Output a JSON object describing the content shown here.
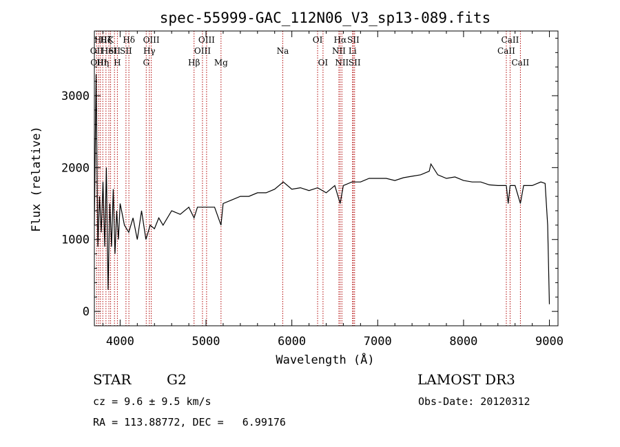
{
  "chart_data": {
    "type": "line",
    "title": "spec-55999-GAC_112N06_V3_sp13-089.fits",
    "xlabel": "Wavelength (Å)",
    "ylabel": "Flux (relative)",
    "xlim": [
      3700,
      9100
    ],
    "ylim": [
      -200,
      3900
    ],
    "xticks": [
      4000,
      5000,
      6000,
      7000,
      8000,
      9000
    ],
    "yticks": [
      0,
      1000,
      2000,
      3000
    ],
    "series": [
      {
        "name": "flux",
        "x": [
          3700,
          3720,
          3740,
          3760,
          3780,
          3800,
          3820,
          3840,
          3860,
          3880,
          3900,
          3920,
          3940,
          3960,
          3980,
          4000,
          4050,
          4100,
          4150,
          4200,
          4250,
          4300,
          4350,
          4400,
          4450,
          4500,
          4600,
          4700,
          4800,
          4861,
          4900,
          5000,
          5100,
          5175,
          5200,
          5300,
          5400,
          5500,
          5600,
          5700,
          5800,
          5900,
          6000,
          6100,
          6200,
          6300,
          6400,
          6500,
          6563,
          6600,
          6700,
          6800,
          6900,
          7000,
          7100,
          7200,
          7300,
          7400,
          7500,
          7600,
          7620,
          7700,
          7800,
          7900,
          8000,
          8100,
          8200,
          8300,
          8400,
          8498,
          8520,
          8542,
          8600,
          8662,
          8700,
          8800,
          8900,
          8950,
          8980,
          9000
        ],
        "y": [
          1200,
          3300,
          900,
          1600,
          1100,
          1800,
          900,
          2000,
          300,
          1500,
          900,
          1700,
          800,
          1400,
          1000,
          1500,
          1200,
          1100,
          1300,
          1000,
          1400,
          1000,
          1200,
          1150,
          1300,
          1200,
          1400,
          1350,
          1450,
          1300,
          1450,
          1450,
          1450,
          1200,
          1500,
          1550,
          1600,
          1600,
          1650,
          1650,
          1700,
          1800,
          1700,
          1720,
          1680,
          1720,
          1650,
          1750,
          1500,
          1750,
          1800,
          1800,
          1850,
          1850,
          1850,
          1820,
          1860,
          1880,
          1900,
          1950,
          2050,
          1900,
          1850,
          1870,
          1820,
          1800,
          1800,
          1760,
          1750,
          1750,
          1500,
          1750,
          1750,
          1500,
          1750,
          1750,
          1800,
          1780,
          1200,
          100
        ]
      }
    ],
    "line_markers": [
      {
        "wavelength": 3727,
        "label": "OII",
        "row": 2
      },
      {
        "wavelength": 3750,
        "label": "OIII",
        "row": 3
      },
      {
        "wavelength": 3770,
        "label": "Hθ",
        "row": 1
      },
      {
        "wavelength": 3798,
        "label": "Hη",
        "row": 3
      },
      {
        "wavelength": 3835,
        "label": "Hζ",
        "row": 1
      },
      {
        "wavelength": 3869,
        "label": "HeI",
        "row": 2
      },
      {
        "wavelength": 3889,
        "label": "K",
        "row": 1
      },
      {
        "wavelength": 3934,
        "label": "SII",
        "row": 2
      },
      {
        "wavelength": 3968,
        "label": "H",
        "row": 3
      },
      {
        "wavelength": 4068,
        "label": "SII",
        "row": 2
      },
      {
        "wavelength": 4102,
        "label": "Hδ",
        "row": 1
      },
      {
        "wavelength": 4304,
        "label": "G",
        "row": 3
      },
      {
        "wavelength": 4340,
        "label": "Hγ",
        "row": 2
      },
      {
        "wavelength": 4363,
        "label": "OIII",
        "row": 1
      },
      {
        "wavelength": 4861,
        "label": "Hβ",
        "row": 3
      },
      {
        "wavelength": 4959,
        "label": "OIII",
        "row": 2
      },
      {
        "wavelength": 5007,
        "label": "OIII",
        "row": 1
      },
      {
        "wavelength": 5175,
        "label": "Mg",
        "row": 3
      },
      {
        "wavelength": 5894,
        "label": "Na",
        "row": 2
      },
      {
        "wavelength": 6300,
        "label": "OI",
        "row": 1
      },
      {
        "wavelength": 6363,
        "label": "OI",
        "row": 3
      },
      {
        "wavelength": 6548,
        "label": "NII",
        "row": 2
      },
      {
        "wavelength": 6563,
        "label": "Hα",
        "row": 1
      },
      {
        "wavelength": 6583,
        "label": "NII",
        "row": 3
      },
      {
        "wavelength": 6707,
        "label": "Li",
        "row": 2
      },
      {
        "wavelength": 6716,
        "label": "SII",
        "row": 1
      },
      {
        "wavelength": 6731,
        "label": "SII",
        "row": 3
      },
      {
        "wavelength": 8498,
        "label": "CaII",
        "row": 2
      },
      {
        "wavelength": 8542,
        "label": "CaII",
        "row": 1
      },
      {
        "wavelength": 8662,
        "label": "CaII",
        "row": 3
      }
    ],
    "annotations": {
      "object_class": "STAR",
      "subclass": "G2",
      "survey": "LAMOST DR3",
      "redshift": "cz = 9.6 ± 9.5 km/s",
      "obs_date": "Obs-Date: 20120312",
      "coords": "RA = 113.88772, DEC =   6.99176"
    },
    "colors": {
      "line": "#000000",
      "marker": "#b00000",
      "axes": "#000000"
    }
  }
}
